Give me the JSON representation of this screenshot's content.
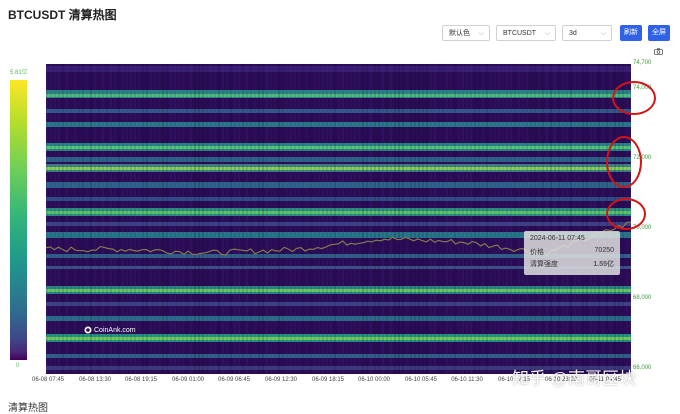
{
  "title": "BTCUSDT 清算热图",
  "toolbar": {
    "color_select": "默认色",
    "symbol_select": "BTCUSDT",
    "range_select": "3d",
    "refresh_button": "刷新",
    "fullscreen_button": "全屏"
  },
  "colorbar": {
    "max_label": "5.81亿",
    "min_label": "0"
  },
  "axis": {
    "y_ticks": [
      "74,700",
      "74,000",
      "72,000",
      "70,000",
      "68,000",
      "66,000"
    ],
    "x_ticks": [
      "06-08 07:45",
      "06-08 13:30",
      "06-08 19:15",
      "06-09 01:00",
      "06-09 06:45",
      "06-09 12:30",
      "06-09 18:15",
      "06-10 00:00",
      "06-10 05:45",
      "06-10 11:30",
      "06-10 17:15",
      "06-10 23:00",
      "06-11 04:45"
    ]
  },
  "tooltip": {
    "time": "2024-06-11 07:45",
    "price_label": "价格",
    "price_value": "70250",
    "intensity_label": "清算强度",
    "intensity_value": "1.55亿"
  },
  "logo": "CoinAnk.com",
  "watermark": "知乎 @南哥区块",
  "footer": "清算热图",
  "colors": {
    "accent_button": "#2f62e6",
    "annotation_circle": "#d41515",
    "heat_low": "#2a0c55",
    "heat_high": "#fde725"
  },
  "chart_data": {
    "type": "heatmap",
    "title": "BTCUSDT 清算热图",
    "y_range": [
      66000,
      74700
    ],
    "colorscale_range": [
      0,
      "5.81亿"
    ],
    "price_series_approx": [
      {
        "x": "06-08 07:45",
        "y": 69500
      },
      {
        "x": "06-08 19:15",
        "y": 69500
      },
      {
        "x": "06-09 06:45",
        "y": 69400
      },
      {
        "x": "06-09 18:15",
        "y": 69500
      },
      {
        "x": "06-10 00:00",
        "y": 69800
      },
      {
        "x": "06-10 11:30",
        "y": 69700
      },
      {
        "x": "06-10 23:00",
        "y": 69400
      },
      {
        "x": "06-11 07:45",
        "y": 70250
      }
    ]
  }
}
